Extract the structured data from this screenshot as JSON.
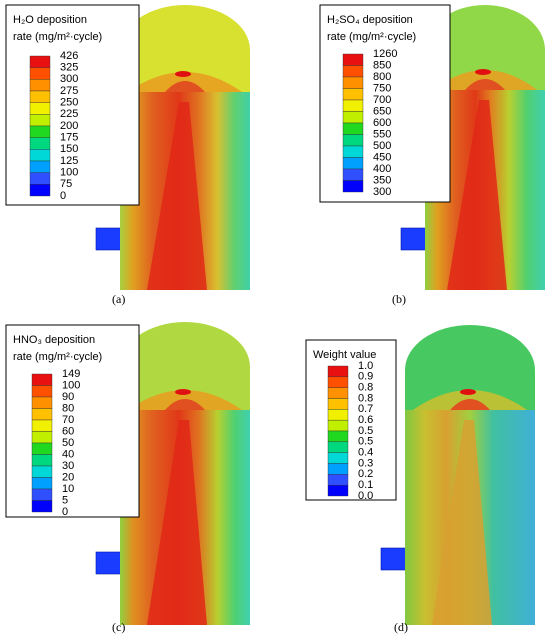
{
  "panels": [
    {
      "title": [
        "H₂O deposition",
        "rate (mg/m²·cycle)"
      ],
      "labels": [
        "426",
        "325",
        "300",
        "275",
        "250",
        "225",
        "200",
        "175",
        "150",
        "125",
        "100",
        "75",
        "0"
      ],
      "caption": "(a)"
    },
    {
      "title": [
        "H₂SO₄ deposition",
        "rate (mg/m²·cycle)"
      ],
      "labels": [
        "1260",
        "850",
        "800",
        "750",
        "700",
        "650",
        "600",
        "550",
        "500",
        "450",
        "400",
        "350",
        "300"
      ],
      "caption": "(b)"
    },
    {
      "title": [
        "HNO₃ deposition",
        "rate (mg/m²·cycle)"
      ],
      "labels": [
        "149",
        "100",
        "90",
        "80",
        "70",
        "60",
        "50",
        "40",
        "30",
        "20",
        "10",
        "5",
        "0"
      ],
      "caption": "(c)"
    },
    {
      "title": [
        "Weight value"
      ],
      "labels": [
        "1.0",
        "0.9",
        "0.8",
        "0.8",
        "0.7",
        "0.6",
        "0.5",
        "0.5",
        "0.4",
        "0.3",
        "0.2",
        "0.1",
        "0.0"
      ],
      "caption": "(d)"
    }
  ]
}
